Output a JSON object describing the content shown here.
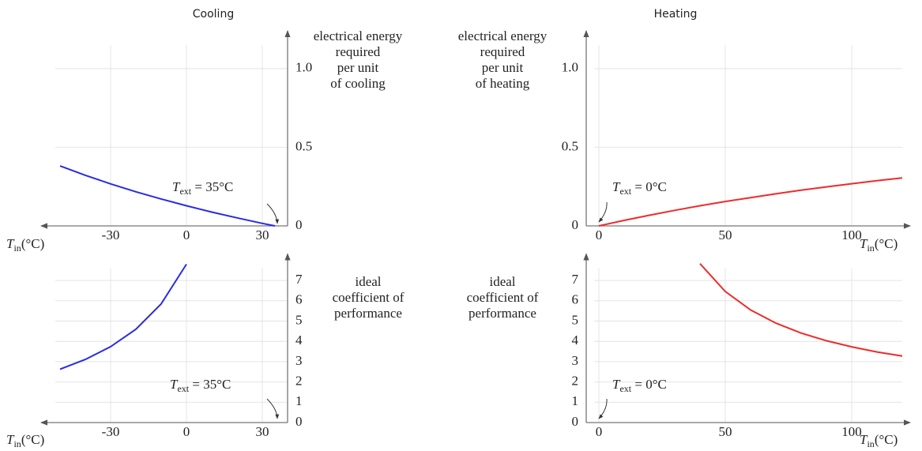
{
  "chart_data": [
    {
      "type": "line",
      "title": "Cooling",
      "ylabel": [
        "electrical energy",
        "required",
        "per unit",
        "of cooling"
      ],
      "xlabel": [
        "T",
        "in",
        "(°C)"
      ],
      "annotation": [
        "T",
        "ext",
        " = 35°C"
      ],
      "x": [
        -50,
        -40,
        -30,
        -20,
        -10,
        0,
        10,
        20,
        30,
        35
      ],
      "values": [
        0.381,
        0.322,
        0.267,
        0.217,
        0.171,
        0.128,
        0.088,
        0.051,
        0.016,
        0
      ],
      "color": "#2a2ae6",
      "xlim": [
        -55,
        40
      ],
      "xticks": [
        -30,
        0,
        30
      ],
      "ylim": [
        0,
        1.2
      ],
      "yticks": [
        0,
        0.5,
        {
          "value": 1,
          "label": "1.0"
        }
      ],
      "grid": true
    },
    {
      "type": "line",
      "ylabel": [
        "ideal",
        "coefficient of",
        "performance"
      ],
      "xlabel": [
        "T",
        "in",
        "(°C)"
      ],
      "annotation": [
        "T",
        "ext",
        " = 35°C"
      ],
      "x": [
        -50,
        -40,
        -30,
        -20,
        -10,
        0
      ],
      "values": [
        2.63,
        3.11,
        3.74,
        4.6,
        5.85,
        7.8
      ],
      "color": "#2a2ae6",
      "xlim": [
        -55,
        40
      ],
      "xticks": [
        -30,
        0,
        30
      ],
      "ylim": [
        0,
        8
      ],
      "yticks": [
        0,
        1,
        2,
        3,
        4,
        5,
        6,
        7
      ],
      "grid": true
    },
    {
      "type": "line",
      "title": "Heating",
      "ylabel": [
        "electrical energy",
        "required",
        "per unit",
        "of heating"
      ],
      "xlabel": [
        "T",
        "in",
        "(°C)"
      ],
      "annotation": [
        "T",
        "ext",
        " = 0°C"
      ],
      "x": [
        0,
        10,
        20,
        30,
        40,
        50,
        60,
        70,
        80,
        90,
        100,
        110,
        120
      ],
      "values": [
        0,
        0.035,
        0.068,
        0.099,
        0.128,
        0.155,
        0.18,
        0.204,
        0.227,
        0.248,
        0.268,
        0.287,
        0.305
      ],
      "color": "#f02a2a",
      "xlim": [
        -5,
        120
      ],
      "xticks": [
        0,
        50,
        100
      ],
      "ylim": [
        0,
        1.2
      ],
      "yticks": [
        0,
        0.5,
        {
          "value": 1,
          "label": "1.0"
        }
      ],
      "grid": true
    },
    {
      "type": "line",
      "ylabel": [
        "ideal",
        "coefficient of",
        "performance"
      ],
      "xlabel": [
        "T",
        "in",
        "(°C)"
      ],
      "annotation": [
        "T",
        "ext",
        " = 0°C"
      ],
      "x": [
        40,
        50,
        60,
        70,
        80,
        90,
        100,
        110,
        120
      ],
      "values": [
        7.83,
        6.46,
        5.55,
        4.9,
        4.41,
        4.03,
        3.73,
        3.48,
        3.28
      ],
      "color": "#f02a2a",
      "xlim": [
        -5,
        120
      ],
      "xticks": [
        0,
        50,
        100
      ],
      "ylim": [
        0,
        8
      ],
      "yticks": [
        0,
        1,
        2,
        3,
        4,
        5,
        6,
        7
      ],
      "grid": true
    }
  ]
}
